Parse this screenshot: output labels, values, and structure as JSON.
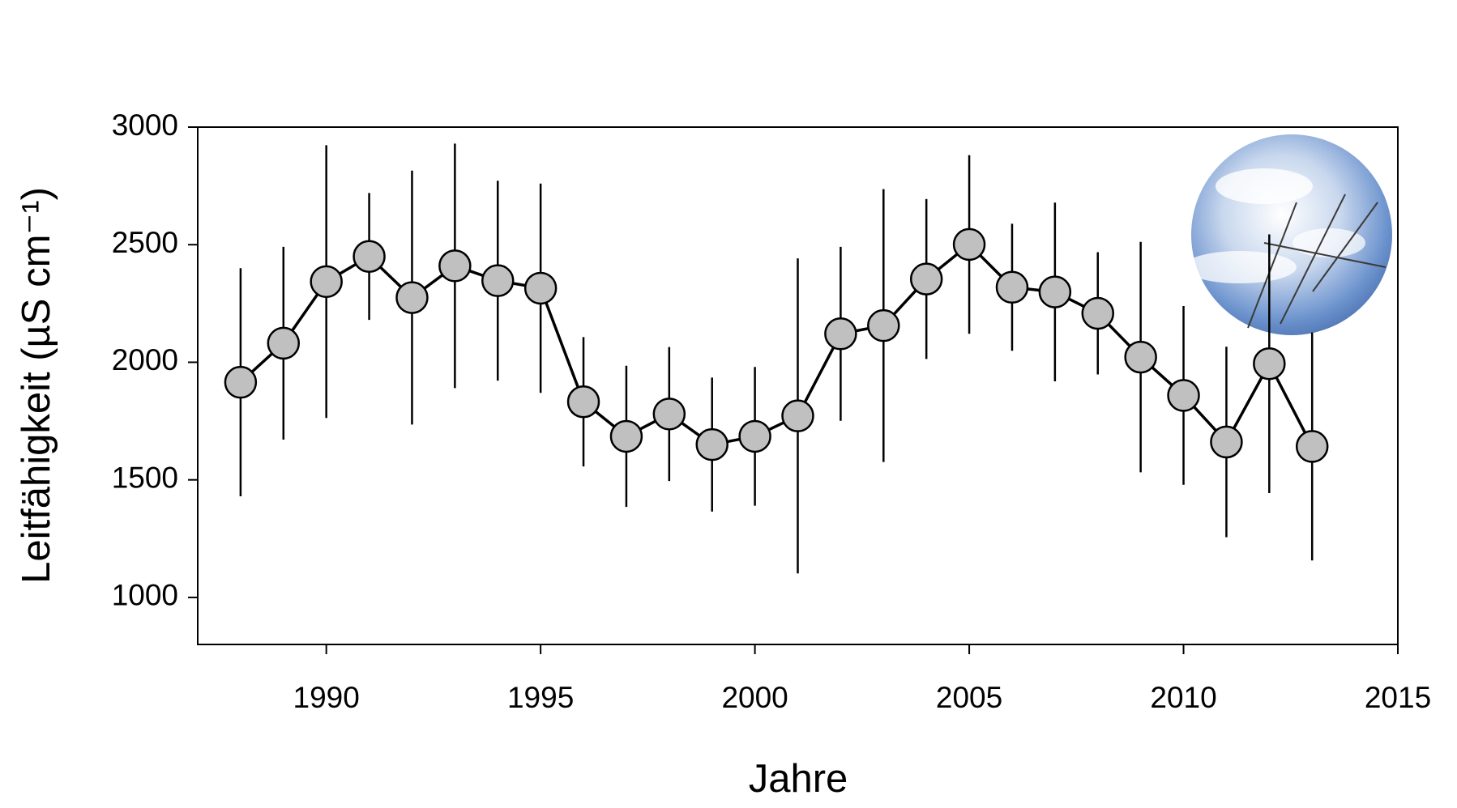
{
  "chart_data": {
    "type": "line",
    "x_label": "Jahre",
    "y_label": "Leitfähigkeit (µS cm⁻¹)",
    "x": [
      1988,
      1989,
      1990,
      1991,
      1992,
      1993,
      1994,
      1995,
      1996,
      1997,
      1998,
      1999,
      2000,
      2001,
      2002,
      2003,
      2004,
      2005,
      2006,
      2007,
      2008,
      2009,
      2010,
      2011,
      2012,
      2013
    ],
    "series": [
      {
        "color": "#c0c0c0",
        "values": [
          1915,
          2081,
          2343,
          2450,
          2275,
          2410,
          2347,
          2315,
          1832,
          1685,
          1780,
          1650,
          1685,
          1772,
          2121,
          2156,
          2354,
          2501,
          2319,
          2299,
          2208,
          2022,
          1859,
          1661,
          1994,
          1642
        ],
        "errors": [
          485,
          410,
          580,
          270,
          540,
          520,
          425,
          445,
          275,
          300,
          285,
          285,
          295,
          670,
          370,
          580,
          340,
          380,
          270,
          380,
          260,
          490,
          380,
          405,
          550,
          485
        ]
      }
    ],
    "xlim": [
      1987,
      2015
    ],
    "xticks": [
      1990,
      1995,
      2000,
      2005,
      2010,
      2015
    ],
    "ylim": [
      800,
      3000
    ],
    "yticks": [
      1000,
      1500,
      2000,
      2500,
      3000
    ]
  }
}
